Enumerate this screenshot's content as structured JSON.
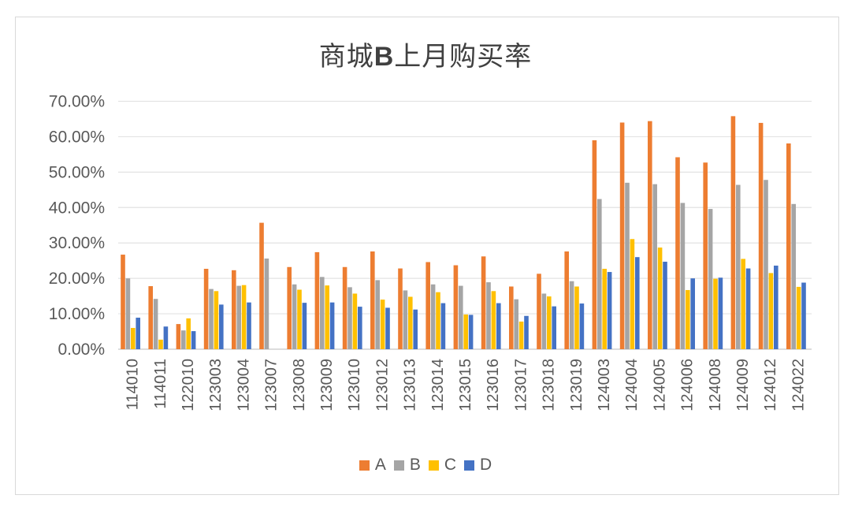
{
  "chart_data": {
    "type": "bar",
    "title": "商城B上月购买率",
    "title_parts": [
      "商城",
      "B",
      "上月购买率"
    ],
    "xlabel": "",
    "ylabel": "",
    "ylim": [
      0,
      0.7
    ],
    "yticks": [
      "0.00%",
      "10.00%",
      "20.00%",
      "30.00%",
      "40.00%",
      "50.00%",
      "60.00%",
      "70.00%"
    ],
    "grid": true,
    "legend_position": "bottom",
    "categories": [
      "114010",
      "114011",
      "122010",
      "123003",
      "123004",
      "123007",
      "123008",
      "123009",
      "123010",
      "123012",
      "123013",
      "123014",
      "123015",
      "123016",
      "123017",
      "123018",
      "123019",
      "124003",
      "124004",
      "124005",
      "124006",
      "124008",
      "124009",
      "124012",
      "124022"
    ],
    "series": [
      {
        "name": "A",
        "color": "#ED7D31",
        "values": [
          0.267,
          0.178,
          0.071,
          0.227,
          0.223,
          0.357,
          0.232,
          0.274,
          0.232,
          0.276,
          0.228,
          0.246,
          0.237,
          0.262,
          0.177,
          0.213,
          0.276,
          0.59,
          0.64,
          0.644,
          0.542,
          0.527,
          0.658,
          0.639,
          0.581
        ]
      },
      {
        "name": "B",
        "color": "#A5A5A5",
        "values": [
          0.2,
          0.142,
          0.053,
          0.17,
          0.179,
          0.256,
          0.183,
          0.204,
          0.175,
          0.195,
          0.166,
          0.183,
          0.179,
          0.189,
          0.141,
          0.157,
          0.192,
          0.424,
          0.47,
          0.466,
          0.413,
          0.396,
          0.464,
          0.478,
          0.41
        ]
      },
      {
        "name": "C",
        "color": "#FFC000",
        "values": [
          0.06,
          0.027,
          0.087,
          0.164,
          0.181,
          0.0,
          0.168,
          0.18,
          0.157,
          0.14,
          0.148,
          0.161,
          0.098,
          0.164,
          0.078,
          0.149,
          0.177,
          0.227,
          0.311,
          0.287,
          0.167,
          0.199,
          0.255,
          0.215,
          0.176
        ]
      },
      {
        "name": "D",
        "color": "#4472C4",
        "values": [
          0.089,
          0.064,
          0.051,
          0.126,
          0.132,
          0.0,
          0.131,
          0.132,
          0.12,
          0.117,
          0.112,
          0.13,
          0.097,
          0.13,
          0.094,
          0.121,
          0.129,
          0.218,
          0.26,
          0.247,
          0.2,
          0.202,
          0.228,
          0.236,
          0.188
        ]
      }
    ]
  },
  "legend": {
    "items": [
      {
        "label": "A",
        "color": "#ED7D31"
      },
      {
        "label": "B",
        "color": "#A5A5A5"
      },
      {
        "label": "C",
        "color": "#FFC000"
      },
      {
        "label": "D",
        "color": "#4472C4"
      }
    ]
  }
}
